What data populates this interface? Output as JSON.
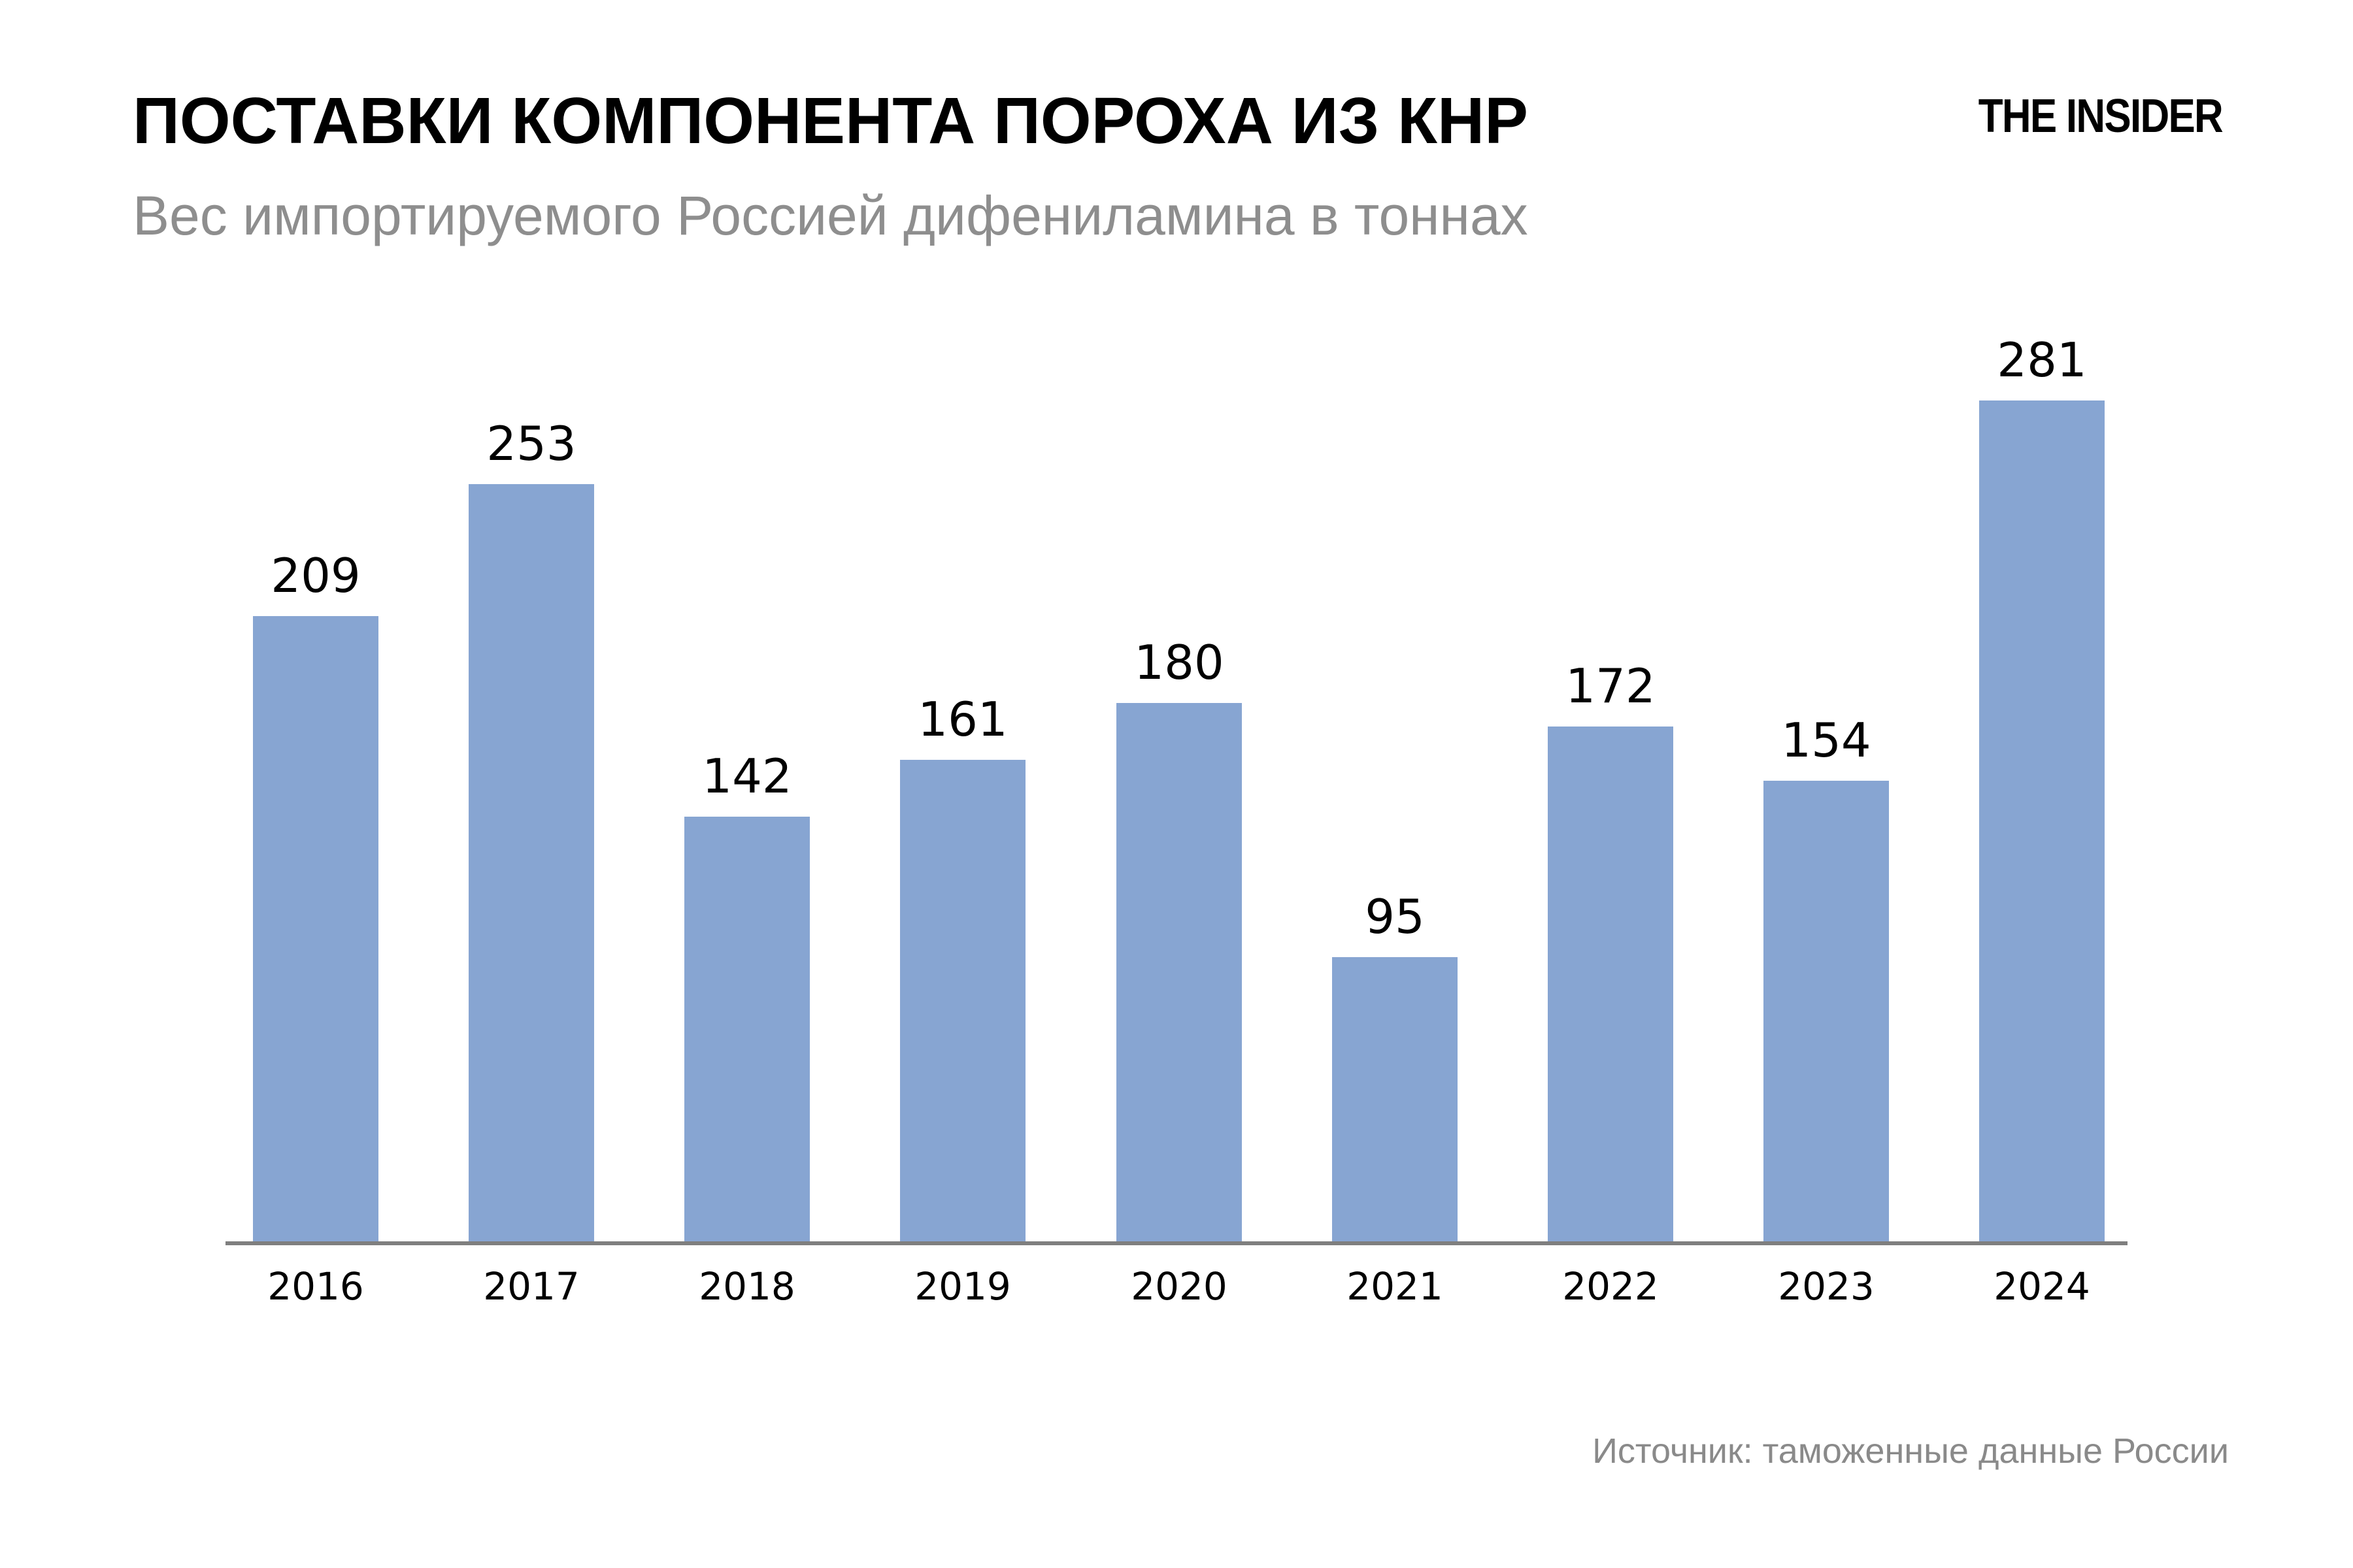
{
  "header": {
    "title": "ПОСТАВКИ КОМПОНЕНТА ПОРОХА ИЗ КНР",
    "subtitle": "Вес импортируемого Россией дифениламина в тоннах",
    "logo": "THE INSIDER"
  },
  "chart_data": {
    "type": "bar",
    "title": "ПОСТАВКИ КОМПОНЕНТА ПОРОХА ИЗ КНР",
    "subtitle": "Вес импортируемого Россией дифениламина в тоннах",
    "categories": [
      "2016",
      "2017",
      "2018",
      "2019",
      "2020",
      "2021",
      "2022",
      "2023",
      "2024"
    ],
    "values": [
      209,
      253,
      142,
      161,
      180,
      95,
      172,
      154,
      281
    ],
    "xlabel": "",
    "ylabel": "",
    "ylim": [
      0,
      281
    ],
    "grid": false,
    "legend": null,
    "y_axis_visible": false,
    "value_labels_visible": true,
    "bar_color": "#87a5d2",
    "axis_color": "#7f7f7f"
  },
  "footer": {
    "source": "Источник: таможенные данные России"
  },
  "colors": {
    "background": "#ffffff",
    "title": "#000000",
    "subtitle": "#8e8e8e",
    "bar": "#87a5d2",
    "axis": "#7f7f7f",
    "source": "#8a8a8a"
  }
}
